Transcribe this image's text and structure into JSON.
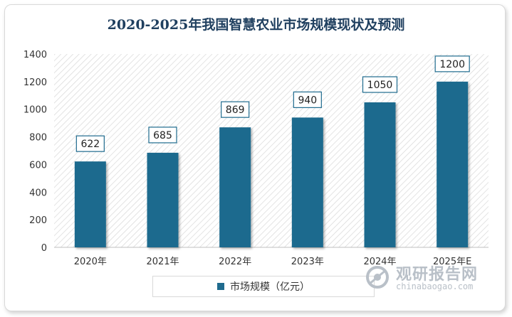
{
  "chart_data": {
    "type": "bar",
    "title": "2020-2025年我国智慧农业市场规模现状及预测",
    "categories": [
      "2020年",
      "2021年",
      "2022年",
      "2023年",
      "2024年",
      "2025年E"
    ],
    "series": [
      {
        "name": "市场规模（亿元）",
        "values": [
          622,
          685,
          869,
          940,
          1050,
          1200
        ]
      }
    ],
    "ylim": [
      0,
      1400
    ],
    "yticks": [
      0,
      200,
      400,
      600,
      800,
      1000,
      1200,
      1400
    ],
    "grid": "diagonal hatch background",
    "legend_position": "bottom",
    "colors": {
      "bar": "#1f6b8e",
      "title": "#1f3f5f",
      "label_border": "#1f6b8e"
    }
  },
  "watermark": {
    "text_cn": "观研报告网",
    "text_en": "chinabaogao.com"
  }
}
